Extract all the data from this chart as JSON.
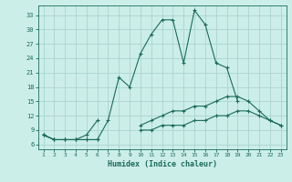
{
  "xlabel": "Humidex (Indice chaleur)",
  "background_color": "#cceee8",
  "grid_color": "#aad4ce",
  "line_color": "#1a6b5a",
  "x": [
    1,
    2,
    3,
    4,
    5,
    6,
    7,
    8,
    9,
    10,
    11,
    12,
    13,
    14,
    15,
    16,
    17,
    18,
    19,
    20,
    21,
    22,
    23
  ],
  "line1": [
    8,
    7,
    7,
    7,
    7,
    7,
    11,
    20,
    18,
    25,
    29,
    32,
    32,
    23,
    34,
    31,
    23,
    22,
    15,
    null,
    null,
    null,
    null
  ],
  "line2": [
    8,
    7,
    7,
    7,
    8,
    11,
    null,
    null,
    null,
    10,
    11,
    12,
    13,
    13,
    14,
    14,
    15,
    16,
    16,
    15,
    13,
    11,
    10
  ],
  "line3": [
    8,
    7,
    7,
    7,
    7,
    7,
    null,
    null,
    null,
    9,
    9,
    10,
    10,
    10,
    11,
    11,
    12,
    12,
    13,
    13,
    12,
    11,
    10
  ],
  "ylim": [
    5,
    35
  ],
  "xlim": [
    0.5,
    23.5
  ],
  "yticks": [
    6,
    9,
    12,
    15,
    18,
    21,
    24,
    27,
    30,
    33
  ],
  "xticks": [
    1,
    2,
    3,
    4,
    5,
    6,
    7,
    8,
    9,
    10,
    11,
    12,
    13,
    14,
    15,
    16,
    17,
    18,
    19,
    20,
    21,
    22,
    23
  ]
}
